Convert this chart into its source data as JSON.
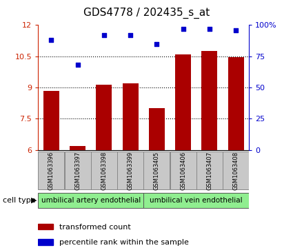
{
  "title": "GDS4778 / 202435_s_at",
  "samples": [
    "GSM1063396",
    "GSM1063397",
    "GSM1063398",
    "GSM1063399",
    "GSM1063405",
    "GSM1063406",
    "GSM1063407",
    "GSM1063408"
  ],
  "transformed_count": [
    8.85,
    6.2,
    9.15,
    9.2,
    8.0,
    10.6,
    10.75,
    10.45
  ],
  "percentile_rank": [
    88,
    68,
    92,
    92,
    85,
    97,
    97,
    96
  ],
  "ylim_left": [
    6,
    12
  ],
  "ylim_right": [
    0,
    100
  ],
  "yticks_left": [
    6,
    7.5,
    9,
    10.5,
    12
  ],
  "yticks_right": [
    0,
    25,
    50,
    75,
    100
  ],
  "ytick_labels_left": [
    "6",
    "7.5",
    "9",
    "10.5",
    "12"
  ],
  "ytick_labels_right": [
    "0",
    "25",
    "50",
    "75",
    "100%"
  ],
  "cell_type_groups": [
    {
      "label": "umbilical artery endothelial",
      "start": 0,
      "end": 3,
      "color": "#90EE90"
    },
    {
      "label": "umbilical vein endothelial",
      "start": 4,
      "end": 7,
      "color": "#90EE90"
    }
  ],
  "bar_color": "#AA0000",
  "dot_color": "#0000CC",
  "bar_width": 0.6,
  "grid_color": "#000000",
  "bg_color": "#ffffff",
  "label_box_color": "#c8c8c8",
  "legend_bar_label": "transformed count",
  "legend_dot_label": "percentile rank within the sample",
  "cell_type_label": "cell type",
  "left_axis_color": "#CC2200",
  "right_axis_color": "#0000CC",
  "title_fontsize": 11,
  "tick_fontsize": 8,
  "legend_fontsize": 8,
  "sample_fontsize": 6
}
